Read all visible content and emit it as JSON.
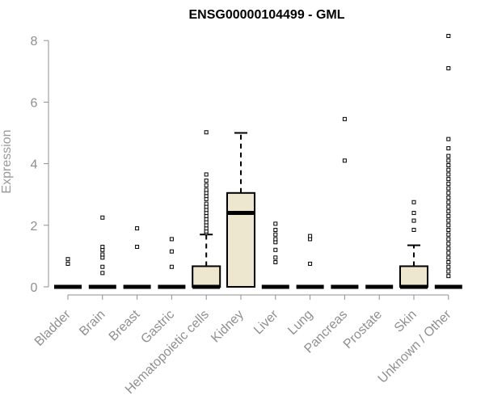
{
  "chart_data": {
    "type": "box",
    "title": "ENSG00000104499 - GML",
    "ylabel": "Expression",
    "xlabel": "",
    "ylim": [
      0,
      8.2
    ],
    "yticks": [
      0,
      2,
      4,
      6,
      8
    ],
    "grid": false,
    "colors": {
      "box_fill": "#ede7cf",
      "box_stroke": "#000000",
      "axis_text": "#8f8f8f",
      "axis_line": "#8f8f8f",
      "outlier_fill": "#ffffff"
    },
    "categories": [
      "Bladder",
      "Brain",
      "Breast",
      "Gastric",
      "Hematopoietic cells",
      "Kidney",
      "Liver",
      "Lung",
      "Pancreas",
      "Prostate",
      "Skin",
      "Unknown / Other"
    ],
    "boxes": [
      {
        "category": "Bladder",
        "min": 0,
        "q1": 0,
        "median": 0,
        "q3": 0,
        "max": 0,
        "outliers": [
          0.75,
          0.9
        ]
      },
      {
        "category": "Brain",
        "min": 0,
        "q1": 0,
        "median": 0,
        "q3": 0,
        "max": 0,
        "outliers": [
          0.45,
          0.65,
          0.95,
          1.05,
          1.2,
          1.3,
          2.25
        ]
      },
      {
        "category": "Breast",
        "min": 0,
        "q1": 0,
        "median": 0,
        "q3": 0,
        "max": 0,
        "outliers": [
          1.3,
          1.9
        ]
      },
      {
        "category": "Gastric",
        "min": 0,
        "q1": 0,
        "median": 0,
        "q3": 0,
        "max": 0,
        "outliers": [
          0.65,
          1.15,
          1.55
        ]
      },
      {
        "category": "Hematopoietic cells",
        "min": 0,
        "q1": 0,
        "median": 0,
        "q3": 0.67,
        "max": 1.7,
        "outliers": [
          1.75,
          1.8,
          1.9,
          2.0,
          2.1,
          2.2,
          2.3,
          2.4,
          2.5,
          2.6,
          2.7,
          2.85,
          2.95,
          3.05,
          3.15,
          3.3,
          3.45,
          3.65,
          5.02
        ]
      },
      {
        "category": "Kidney",
        "min": 0,
        "q1": 0,
        "median": 2.4,
        "q3": 3.05,
        "max": 5.0,
        "outliers": []
      },
      {
        "category": "Liver",
        "min": 0,
        "q1": 0,
        "median": 0,
        "q3": 0,
        "max": 0,
        "outliers": [
          0.8,
          0.95,
          1.2,
          1.45,
          1.55,
          1.7,
          1.85,
          2.05
        ]
      },
      {
        "category": "Lung",
        "min": 0,
        "q1": 0,
        "median": 0,
        "q3": 0,
        "max": 0,
        "outliers": [
          0.75,
          1.55,
          1.65
        ]
      },
      {
        "category": "Pancreas",
        "min": 0,
        "q1": 0,
        "median": 0,
        "q3": 0,
        "max": 0,
        "outliers": [
          4.1,
          5.45
        ]
      },
      {
        "category": "Prostate",
        "min": 0,
        "q1": 0,
        "median": 0,
        "q3": 0,
        "max": 0,
        "outliers": []
      },
      {
        "category": "Skin",
        "min": 0,
        "q1": 0,
        "median": 0,
        "q3": 0.67,
        "max": 1.35,
        "outliers": [
          1.85,
          2.15,
          2.4,
          2.75
        ]
      },
      {
        "category": "Unknown / Other",
        "min": 0,
        "q1": 0,
        "median": 0,
        "q3": 0,
        "max": 0,
        "outliers": [
          0.35,
          0.5,
          0.65,
          0.8,
          0.95,
          1.1,
          1.25,
          1.4,
          1.55,
          1.7,
          1.85,
          2.0,
          2.15,
          2.3,
          2.45,
          2.6,
          2.75,
          2.9,
          3.05,
          3.2,
          3.35,
          3.5,
          3.65,
          3.8,
          3.95,
          4.1,
          4.25,
          4.5,
          4.8,
          7.1,
          8.15
        ]
      }
    ]
  }
}
